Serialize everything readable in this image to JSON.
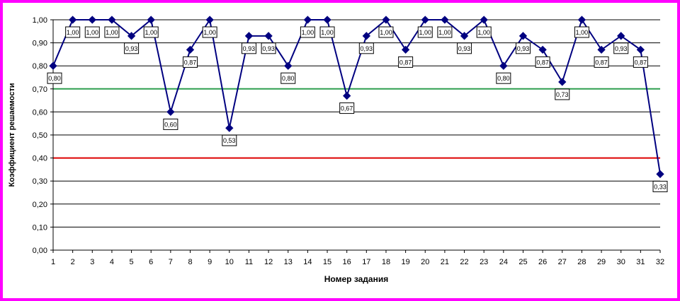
{
  "chart_data": {
    "type": "line",
    "xlabel": "Номер задания",
    "ylabel": "Коэффициент решаемости",
    "ylim": [
      0,
      1
    ],
    "yticks": [
      "0,00",
      "0,10",
      "0,20",
      "0,30",
      "0,40",
      "0,50",
      "0,60",
      "0,70",
      "0,80",
      "0,90",
      "1,00"
    ],
    "x": [
      1,
      2,
      3,
      4,
      5,
      6,
      7,
      8,
      9,
      10,
      11,
      12,
      13,
      14,
      15,
      16,
      17,
      18,
      19,
      20,
      21,
      22,
      23,
      24,
      25,
      26,
      27,
      28,
      29,
      30,
      31,
      32
    ],
    "values": [
      0.8,
      1.0,
      1.0,
      1.0,
      0.93,
      1.0,
      0.6,
      0.87,
      1.0,
      0.53,
      0.93,
      0.93,
      0.8,
      1.0,
      1.0,
      0.67,
      0.93,
      1.0,
      0.87,
      1.0,
      1.0,
      0.93,
      1.0,
      0.8,
      0.93,
      0.87,
      0.73,
      1.0,
      0.87,
      0.93,
      0.87,
      0.33
    ],
    "data_labels": [
      "0,80",
      "1,00",
      "1,00",
      "1,00",
      "0,93",
      "1,00",
      "0,60",
      "0,87",
      "1,00",
      "0,53",
      "0,93",
      "0,93",
      "0,80",
      "1,00",
      "1,00",
      "0,67",
      "0,93",
      "1,00",
      "0,87",
      "1,00",
      "1,00",
      "0,93",
      "1,00",
      "0,80",
      "0,93",
      "0,87",
      "0,73",
      "1,00",
      "0,87",
      "0,93",
      "0,87",
      "0,33"
    ],
    "reference_lines": [
      {
        "value": 0.7,
        "color": "#2e9e4f"
      },
      {
        "value": 0.4,
        "color": "#dd0000"
      }
    ],
    "series_color": "#000080",
    "grid": true
  }
}
